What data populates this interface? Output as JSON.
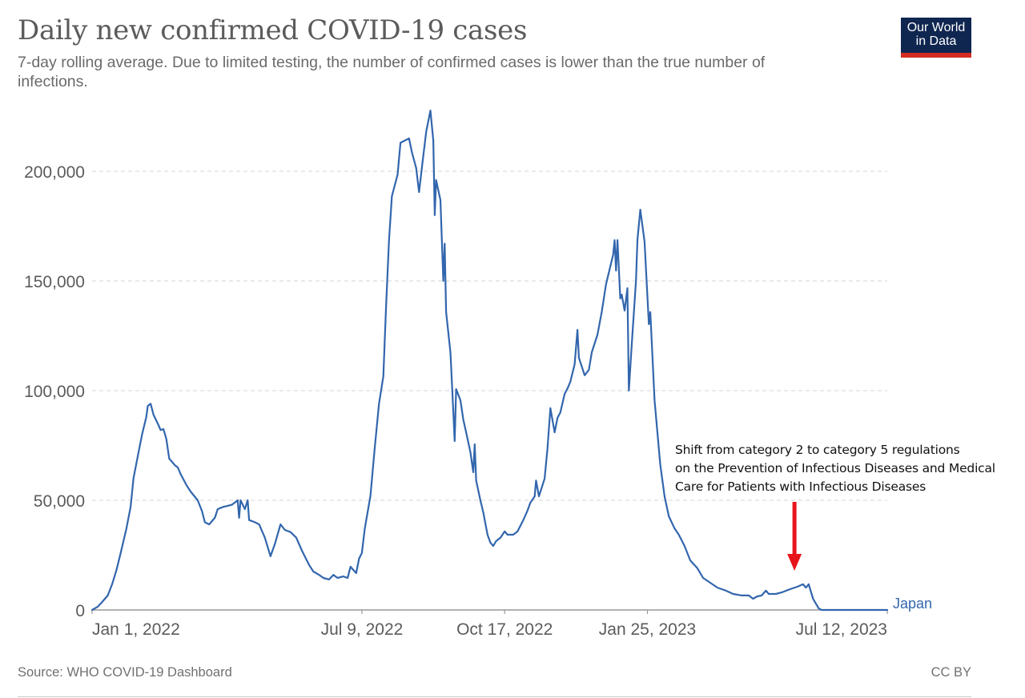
{
  "header": {
    "title": "Daily new confirmed COVID-19 cases",
    "subtitle": "7-day rolling average. Due to limited testing, the number of confirmed cases is lower than the true number of infections.",
    "logo_line1": "Our World",
    "logo_line2": "in Data"
  },
  "footer": {
    "source": "Source: WHO COVID-19 Dashboard",
    "license": "CC BY"
  },
  "annotation": {
    "lines": [
      "Shift from category 2 to category 5 regulations",
      "on the Prevention of Infectious Diseases and Medical",
      "Care for Patients with Infectious Diseases"
    ],
    "arrow_day": 492,
    "arrow_color": "#e8141b"
  },
  "colors": {
    "series": "#3266ad",
    "grid": "#dddddd",
    "axis": "#999999",
    "text": "#5b5b5b",
    "logo_bg": "#0f2650",
    "logo_bar": "#d42b21"
  },
  "chart_data": {
    "type": "line",
    "title": "Daily new confirmed COVID-19 cases",
    "subtitle": "7-day rolling average. Due to limited testing, the number of confirmed cases is lower than the true number of infections.",
    "xlabel": "",
    "ylabel": "",
    "x_unit": "days since Jan 1, 2022",
    "xlim": [
      0,
      557
    ],
    "ylim": [
      0,
      228000
    ],
    "grid": true,
    "legend": "end-of-line label",
    "y_ticks": [
      {
        "value": 0,
        "label": "0"
      },
      {
        "value": 50000,
        "label": "50,000"
      },
      {
        "value": 100000,
        "label": "100,000"
      },
      {
        "value": 150000,
        "label": "150,000"
      },
      {
        "value": 200000,
        "label": "200,000"
      }
    ],
    "x_ticks": [
      {
        "value": 0,
        "label": "Jan 1, 2022"
      },
      {
        "value": 189,
        "label": "Jul 9, 2022"
      },
      {
        "value": 289,
        "label": "Oct 17, 2022"
      },
      {
        "value": 389,
        "label": "Jan 25, 2023"
      },
      {
        "value": 557,
        "label": "Jul 12, 2023"
      }
    ],
    "series": [
      {
        "name": "Japan",
        "x": [
          0,
          4,
          7,
          11,
          14,
          17,
          20,
          24,
          27,
          29,
          32,
          35,
          38,
          39,
          41,
          43,
          46,
          48,
          50,
          52,
          54,
          58,
          60,
          62,
          66,
          69,
          74,
          77,
          79,
          82,
          86,
          88,
          92,
          95,
          98,
          102,
          103,
          104,
          107,
          109,
          110,
          114,
          117,
          121,
          125,
          128,
          132,
          135,
          139,
          143,
          147,
          152,
          155,
          159,
          162,
          166,
          169,
          172,
          176,
          179,
          181,
          185,
          187,
          189,
          191,
          195,
          198,
          201,
          204,
          206,
          208,
          210,
          214,
          216,
          219,
          222,
          224,
          227,
          229,
          231,
          234,
          237,
          239,
          240,
          241,
          244,
          246,
          247,
          248,
          251,
          253,
          254,
          255,
          258,
          260,
          262,
          265,
          267,
          268,
          269,
          272,
          274,
          277,
          279,
          281,
          283,
          286,
          289,
          291,
          295,
          298,
          302,
          305,
          307,
          310,
          311,
          313,
          317,
          319,
          321,
          324,
          326,
          328,
          331,
          333,
          335,
          338,
          340,
          341,
          345,
          348,
          350,
          354,
          357,
          360,
          365,
          366,
          367,
          368,
          370,
          371,
          373,
          375,
          376,
          378,
          381,
          382,
          384,
          387,
          390,
          391,
          394,
          398,
          401,
          404,
          408,
          411,
          415,
          419,
          424,
          428,
          433,
          438,
          444,
          449,
          455,
          460,
          463,
          466,
          469,
          472,
          474,
          479,
          483,
          489,
          494,
          498,
          500,
          502,
          505,
          509,
          511,
          557
        ],
        "values": [
          0,
          1500,
          3600,
          6600,
          11700,
          18000,
          26000,
          37000,
          47000,
          60000,
          70000,
          80000,
          88000,
          93000,
          94000,
          89000,
          85000,
          82000,
          82500,
          78000,
          69000,
          66000,
          65000,
          62000,
          57000,
          54000,
          50000,
          45000,
          40000,
          39000,
          42000,
          46000,
          47000,
          47500,
          48000,
          50000,
          42000,
          50000,
          46000,
          50000,
          41000,
          40000,
          39000,
          33000,
          24500,
          30000,
          39000,
          36500,
          35500,
          33000,
          27000,
          20500,
          17500,
          16000,
          14600,
          13900,
          16000,
          14600,
          15300,
          14600,
          19700,
          16800,
          23400,
          26000,
          37000,
          52000,
          74000,
          94000,
          106500,
          139000,
          168600,
          188700,
          198500,
          213000,
          214000,
          215000,
          208800,
          201500,
          190500,
          201500,
          218000,
          227700,
          214000,
          180000,
          196000,
          186900,
          150000,
          167000,
          135800,
          117500,
          91000,
          77000,
          100700,
          95600,
          86900,
          81000,
          72000,
          62800,
          75500,
          59000,
          50000,
          44500,
          34300,
          30700,
          29200,
          31400,
          32900,
          35800,
          34300,
          34300,
          35800,
          40900,
          45300,
          48900,
          51800,
          59000,
          51800,
          59900,
          73700,
          92000,
          81000,
          87600,
          90000,
          98500,
          101000,
          104000,
          112000,
          127700,
          115000,
          107000,
          109500,
          117500,
          125500,
          135800,
          148500,
          162000,
          168600,
          154700,
          168600,
          142000,
          143800,
          136500,
          146700,
          100000,
          121000,
          150000,
          168600,
          182500,
          167900,
          130300,
          135800,
          95600,
          66400,
          51800,
          42700,
          37200,
          34300,
          29200,
          22600,
          19000,
          14600,
          12400,
          10200,
          8800,
          7300,
          6600,
          6600,
          5100,
          6200,
          6600,
          8800,
          7300,
          7300,
          8000,
          9500,
          10600,
          11700,
          10200,
          11700,
          5100,
          700,
          0,
          0
        ]
      }
    ]
  }
}
